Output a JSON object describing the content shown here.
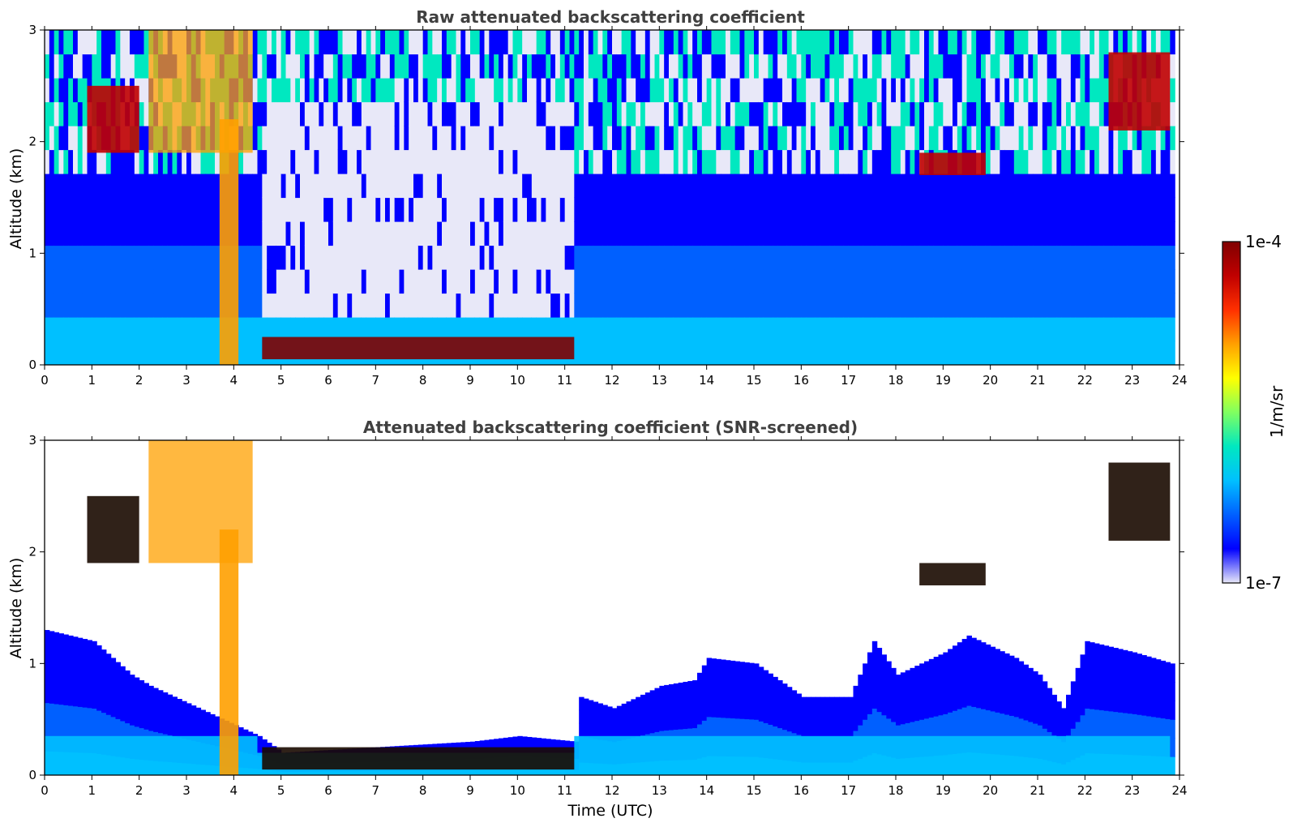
{
  "chart_data": [
    {
      "type": "heatmap",
      "title": "Raw attenuated backscattering coefficient",
      "xlabel": "",
      "ylabel": "Altitude (km)",
      "xlim": [
        0,
        24
      ],
      "ylim": [
        0,
        3
      ],
      "x_ticks": [
        "0",
        "1",
        "2",
        "3",
        "4",
        "5",
        "6",
        "7",
        "8",
        "9",
        "10",
        "11",
        "12",
        "13",
        "14",
        "15",
        "16",
        "17",
        "18",
        "19",
        "20",
        "21",
        "22",
        "23",
        "24"
      ],
      "y_ticks": [
        "0",
        "1",
        "2",
        "3"
      ],
      "screened": false,
      "layers": [
        {
          "kind": "boundary-layer-base",
          "x": [
            0,
            4.5
          ],
          "y": [
            0,
            0.35
          ]
        },
        {
          "kind": "boundary-layer-base",
          "x": [
            4.5,
            11.2
          ],
          "y": [
            0,
            0.2
          ]
        },
        {
          "kind": "boundary-layer-base",
          "x": [
            11.2,
            23.8
          ],
          "y": [
            0,
            0.35
          ]
        },
        {
          "kind": "strong-layer",
          "x": [
            4.6,
            11.2
          ],
          "y": [
            0.05,
            0.25
          ]
        },
        {
          "kind": "plume",
          "x": [
            2.2,
            4.4
          ],
          "y": [
            1.9,
            3.0
          ]
        },
        {
          "kind": "precip-column",
          "x": [
            3.7,
            4.1
          ],
          "y": [
            0,
            2.2
          ]
        },
        {
          "kind": "cloud-fragments",
          "x": [
            0.9,
            2.0
          ],
          "y": [
            1.9,
            2.5
          ]
        },
        {
          "kind": "cloud-fragments",
          "x": [
            18.5,
            19.9
          ],
          "y": [
            1.7,
            1.9
          ]
        },
        {
          "kind": "cloud-fragments",
          "x": [
            22.5,
            23.8
          ],
          "y": [
            2.1,
            2.8
          ]
        }
      ]
    },
    {
      "type": "heatmap",
      "title": "Attenuated backscattering coefficient (SNR-screened)",
      "xlabel": "Time (UTC)",
      "ylabel": "Altitude (km)",
      "xlim": [
        0,
        24
      ],
      "ylim": [
        0,
        3
      ],
      "x_ticks": [
        "0",
        "1",
        "2",
        "3",
        "4",
        "5",
        "6",
        "7",
        "8",
        "9",
        "10",
        "11",
        "12",
        "13",
        "14",
        "15",
        "16",
        "17",
        "18",
        "19",
        "20",
        "21",
        "22",
        "23",
        "24"
      ],
      "y_ticks": [
        "0",
        "1",
        "2",
        "3"
      ],
      "screened": true,
      "boundary_layer_top_km": [
        [
          0,
          1.3
        ],
        [
          1,
          1.2
        ],
        [
          1.8,
          0.9
        ],
        [
          2.2,
          0.8
        ],
        [
          4.5,
          0.35
        ],
        [
          5,
          0.2
        ],
        [
          7,
          0.25
        ],
        [
          9,
          0.3
        ],
        [
          10,
          0.35
        ],
        [
          11.2,
          0.3
        ],
        [
          11.3,
          0.7
        ],
        [
          12,
          0.6
        ],
        [
          13,
          0.8
        ],
        [
          13.7,
          0.85
        ],
        [
          14,
          1.05
        ],
        [
          15,
          1.0
        ],
        [
          16,
          0.7
        ],
        [
          17,
          0.7
        ],
        [
          17.5,
          1.2
        ],
        [
          18,
          0.9
        ],
        [
          19,
          1.1
        ],
        [
          19.5,
          1.25
        ],
        [
          20.5,
          1.05
        ],
        [
          21,
          0.9
        ],
        [
          21.5,
          0.6
        ],
        [
          22,
          1.2
        ],
        [
          23,
          1.1
        ],
        [
          23.8,
          1.0
        ]
      ]
    }
  ],
  "colorbar": {
    "label": "1/m/sr",
    "max_label": "1e-4",
    "min_label": "1e-7",
    "colormap": [
      "#e8e8f8",
      "#0000ff",
      "#0060ff",
      "#00c0ff",
      "#00e8c0",
      "#80ff60",
      "#ffff00",
      "#ffa000",
      "#ff3000",
      "#c00000",
      "#800000"
    ]
  }
}
